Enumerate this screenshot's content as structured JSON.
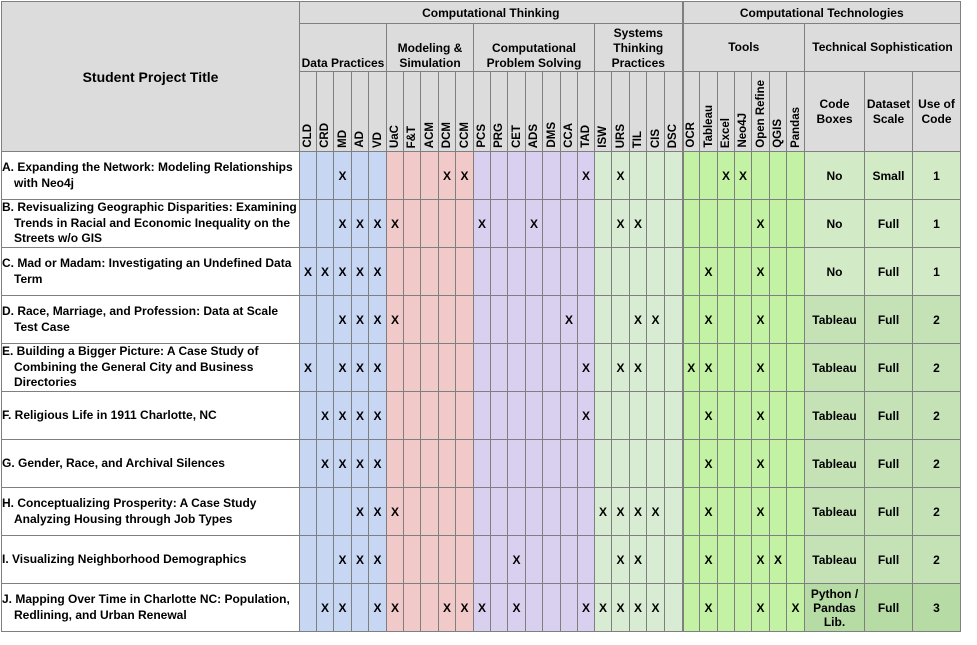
{
  "header": {
    "title": "Student Project Title",
    "computational_thinking": "Computational Thinking",
    "computational_technologies": "Computational Technologies",
    "groups": {
      "data_practices": "Data Practices",
      "modeling_simulation": "Modeling & Simulation",
      "problem_solving": "Computational Problem Solving",
      "systems_thinking": "Systems Thinking Practices",
      "tools": "Tools",
      "technical_sophistication": "Technical Sophistication"
    },
    "data_cols": [
      "CLD",
      "CRD",
      "MD",
      "AD",
      "VD",
      "UaC",
      "F&T",
      "ACM",
      "DCM",
      "CCM",
      "PCS",
      "PRG",
      "CET",
      "ADS",
      "DMS",
      "CCA",
      "TAD",
      "ISW",
      "URS",
      "TIL",
      "CIS",
      "DSC",
      "OCR",
      "Tableau",
      "Excel",
      "Neo4J",
      "Open Refine",
      "QGIS",
      "Pandas"
    ],
    "soph_cols": [
      "Code Boxes",
      "Dataset Scale",
      "Use of Code"
    ]
  },
  "projects": [
    {
      "title": "A. Expanding the Network: Modeling Relationships with Neo4j",
      "marks": [
        "",
        "",
        "X",
        "",
        "",
        "",
        "",
        "",
        "X",
        "X",
        "",
        "",
        "",
        "",
        "",
        "",
        "X",
        "",
        "X",
        "",
        "",
        "",
        "",
        "",
        "X",
        "X",
        "",
        "",
        ""
      ],
      "code_boxes": "No",
      "dataset_scale": "Small",
      "use_of_code": "1"
    },
    {
      "title": "B. Revisualizing Geographic Disparities: Examining Trends in Racial and Economic Inequality on the Streets w/o GIS",
      "marks": [
        "",
        "",
        "X",
        "X",
        "X",
        "X",
        "",
        "",
        "",
        "",
        "X",
        "",
        "",
        "X",
        "",
        "",
        "",
        "",
        "X",
        "X",
        "",
        "",
        "",
        "",
        "",
        "",
        "X",
        "",
        ""
      ],
      "code_boxes": "No",
      "dataset_scale": "Full",
      "use_of_code": "1"
    },
    {
      "title": "C. Mad or Madam: Investigating an Undefined Data Term",
      "marks": [
        "X",
        "X",
        "X",
        "X",
        "X",
        "",
        "",
        "",
        "",
        "",
        "",
        "",
        "",
        "",
        "",
        "",
        "",
        "",
        "",
        "",
        "",
        "",
        "",
        "X",
        "",
        "",
        "X",
        "",
        ""
      ],
      "code_boxes": "No",
      "dataset_scale": "Full",
      "use_of_code": "1"
    },
    {
      "title": "D. Race, Marriage, and Profession: Data at Scale Test Case",
      "marks": [
        "",
        "",
        "X",
        "X",
        "X",
        "X",
        "",
        "",
        "",
        "",
        "",
        "",
        "",
        "",
        "",
        "X",
        "",
        "",
        "",
        "X",
        "X",
        "",
        "",
        "X",
        "",
        "",
        "X",
        "",
        ""
      ],
      "code_boxes": "Tableau",
      "dataset_scale": "Full",
      "use_of_code": "2"
    },
    {
      "title": "E. Building a Bigger Picture: A Case Study of Combining the General City and Business Directories",
      "marks": [
        "X",
        "",
        "X",
        "X",
        "X",
        "",
        "",
        "",
        "",
        "",
        "",
        "",
        "",
        "",
        "",
        "",
        "X",
        "",
        "X",
        "X",
        "",
        "",
        "X",
        "X",
        "",
        "",
        "X",
        "",
        ""
      ],
      "code_boxes": "Tableau",
      "dataset_scale": "Full",
      "use_of_code": "2"
    },
    {
      "title": "F. Religious Life in 1911 Charlotte, NC",
      "marks": [
        "",
        "X",
        "X",
        "X",
        "X",
        "",
        "",
        "",
        "",
        "",
        "",
        "",
        "",
        "",
        "",
        "",
        "X",
        "",
        "",
        "",
        "",
        "",
        "",
        "X",
        "",
        "",
        "X",
        "",
        ""
      ],
      "code_boxes": "Tableau",
      "dataset_scale": "Full",
      "use_of_code": "2"
    },
    {
      "title": "G. Gender, Race, and Archival Silences",
      "marks": [
        "",
        "X",
        "X",
        "X",
        "X",
        "",
        "",
        "",
        "",
        "",
        "",
        "",
        "",
        "",
        "",
        "",
        "",
        "",
        "",
        "",
        "",
        "",
        "",
        "X",
        "",
        "",
        "X",
        "",
        ""
      ],
      "code_boxes": "Tableau",
      "dataset_scale": "Full",
      "use_of_code": "2"
    },
    {
      "title": "H. Conceptualizing Prosperity: A Case Study Analyzing Housing through Job Types",
      "marks": [
        "",
        "",
        "",
        "X",
        "X",
        "X",
        "",
        "",
        "",
        "",
        "",
        "",
        "",
        "",
        "",
        "",
        "",
        "X",
        "X",
        "X",
        "X",
        "",
        "",
        "X",
        "",
        "",
        "X",
        "",
        ""
      ],
      "code_boxes": "Tableau",
      "dataset_scale": "Full",
      "use_of_code": "2"
    },
    {
      "title": "I. Visualizing Neighborhood Demographics",
      "marks": [
        "",
        "",
        "X",
        "X",
        "X",
        "",
        "",
        "",
        "",
        "",
        "",
        "",
        "X",
        "",
        "",
        "",
        "",
        "",
        "X",
        "X",
        "",
        "",
        "",
        "X",
        "",
        "",
        "X",
        "X",
        ""
      ],
      "code_boxes": "Tableau",
      "dataset_scale": "Full",
      "use_of_code": "2"
    },
    {
      "title": "J. Mapping Over Time in Charlotte NC: Population, Redlining, and Urban Renewal",
      "marks": [
        "",
        "X",
        "X",
        "",
        "X",
        "X",
        "",
        "",
        "X",
        "X",
        "X",
        "",
        "X",
        "",
        "",
        "",
        "X",
        "X",
        "X",
        "X",
        "X",
        "",
        "",
        "X",
        "",
        "",
        "X",
        "",
        "X"
      ],
      "code_boxes": "Python / Pandas Lib.",
      "dataset_scale": "Full",
      "use_of_code": "3"
    }
  ],
  "colors": {
    "data_practices": "#c7d7f3",
    "modeling": "#f2c9c9",
    "problem_solving": "#d8d0ee",
    "systems": "#d8ecd3",
    "tools": "#c3f2a4",
    "sophistication": "#d3eac7",
    "header": "#dcdcdc"
  }
}
